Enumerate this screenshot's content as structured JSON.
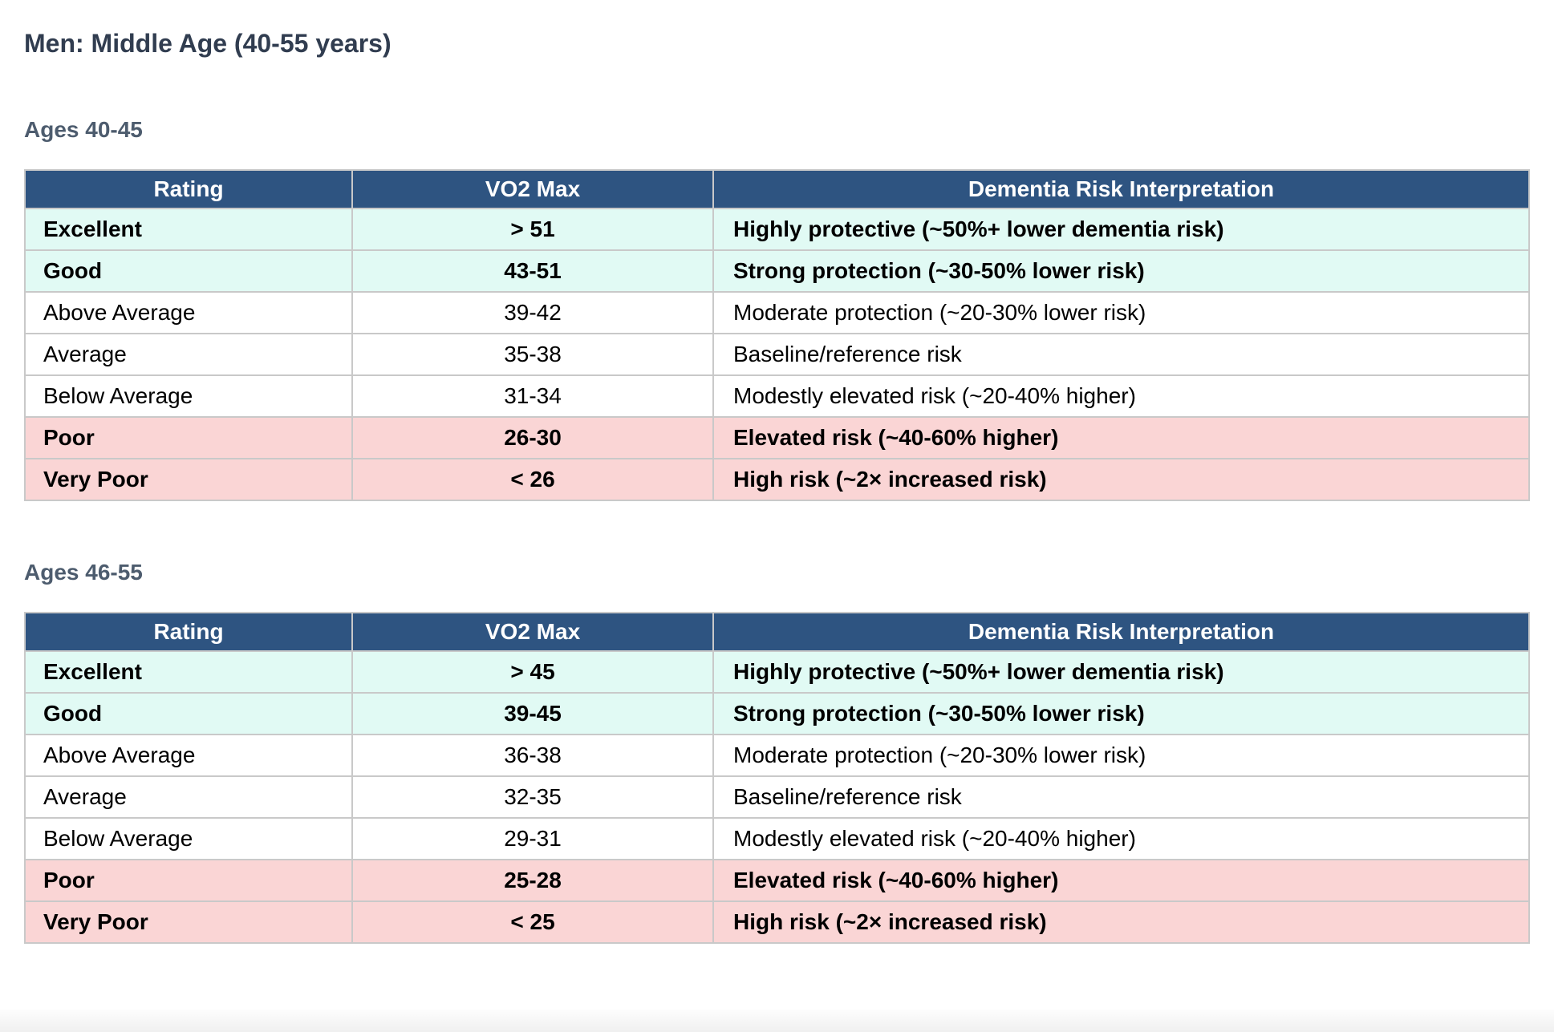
{
  "page": {
    "title": "Men: Middle Age (40-55 years)"
  },
  "colors": {
    "header_bg": "#2e5481",
    "header_text": "#ffffff",
    "mint_row_bg": "#e1faf4",
    "pink_row_bg": "#fad5d5",
    "border": "#c9c9c9",
    "title": "#313d50",
    "subtitle": "#4d5c6e"
  },
  "tables": [
    {
      "subtitle": "Ages 40-45",
      "columns": [
        "Rating",
        "VO2 Max",
        "Dementia Risk Interpretation"
      ],
      "rows": [
        {
          "rating": "Excellent",
          "vo2max": "> 51",
          "interpretation": "Highly protective (~50%+ lower dementia risk)",
          "emphasis": "bold",
          "bg": "mint"
        },
        {
          "rating": "Good",
          "vo2max": "43-51",
          "interpretation": "Strong protection (~30-50% lower risk)",
          "emphasis": "bold",
          "bg": "mint"
        },
        {
          "rating": "Above Average",
          "vo2max": "39-42",
          "interpretation": "Moderate protection (~20-30% lower risk)",
          "emphasis": "normal",
          "bg": "white"
        },
        {
          "rating": "Average",
          "vo2max": "35-38",
          "interpretation": "Baseline/reference risk",
          "emphasis": "normal",
          "bg": "white"
        },
        {
          "rating": "Below Average",
          "vo2max": "31-34",
          "interpretation": "Modestly elevated risk (~20-40% higher)",
          "emphasis": "normal",
          "bg": "white"
        },
        {
          "rating": "Poor",
          "vo2max": "26-30",
          "interpretation": "Elevated risk (~40-60% higher)",
          "emphasis": "bold",
          "bg": "pink"
        },
        {
          "rating": "Very Poor",
          "vo2max": "< 26",
          "interpretation": "High risk (~2× increased risk)",
          "emphasis": "bold",
          "bg": "pink"
        }
      ]
    },
    {
      "subtitle": "Ages 46-55",
      "columns": [
        "Rating",
        "VO2 Max",
        "Dementia Risk Interpretation"
      ],
      "rows": [
        {
          "rating": "Excellent",
          "vo2max": "> 45",
          "interpretation": "Highly protective (~50%+ lower dementia risk)",
          "emphasis": "bold",
          "bg": "mint"
        },
        {
          "rating": "Good",
          "vo2max": "39-45",
          "interpretation": "Strong protection (~30-50% lower risk)",
          "emphasis": "bold",
          "bg": "mint"
        },
        {
          "rating": "Above Average",
          "vo2max": "36-38",
          "interpretation": "Moderate protection (~20-30% lower risk)",
          "emphasis": "normal",
          "bg": "white"
        },
        {
          "rating": "Average",
          "vo2max": "32-35",
          "interpretation": "Baseline/reference risk",
          "emphasis": "normal",
          "bg": "white"
        },
        {
          "rating": "Below Average",
          "vo2max": "29-31",
          "interpretation": "Modestly elevated risk (~20-40% higher)",
          "emphasis": "normal",
          "bg": "white"
        },
        {
          "rating": "Poor",
          "vo2max": "25-28",
          "interpretation": "Elevated risk (~40-60% higher)",
          "emphasis": "bold",
          "bg": "pink"
        },
        {
          "rating": "Very Poor",
          "vo2max": "< 25",
          "interpretation": "High risk (~2× increased risk)",
          "emphasis": "bold",
          "bg": "pink"
        }
      ]
    }
  ]
}
